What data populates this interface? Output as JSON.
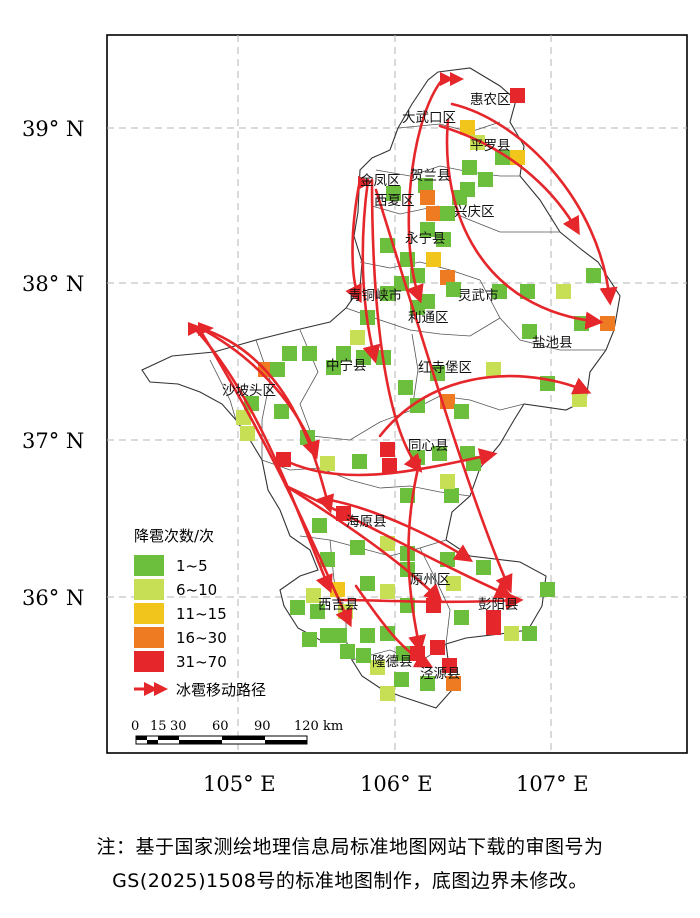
{
  "map": {
    "lat_labels": [
      {
        "text": "39° N",
        "lat": 39
      },
      {
        "text": "38° N",
        "lat": 38
      },
      {
        "text": "37° N",
        "lat": 37
      },
      {
        "text": "36° N",
        "lat": 36
      }
    ],
    "lon_labels": [
      {
        "text": "105° E",
        "lon": 105
      },
      {
        "text": "106° E",
        "lon": 106
      },
      {
        "text": "107° E",
        "lon": 107
      }
    ],
    "counties": [
      "惠农区",
      "大武口区",
      "平罗县",
      "金凤区",
      "贺兰县",
      "西夏区",
      "兴庆区",
      "永宁县",
      "青铜峡市",
      "灵武市",
      "利通区",
      "盐池县",
      "中宁县",
      "红寺堡区",
      "沙坡头区",
      "同心县",
      "海原县",
      "原州区",
      "西吉县",
      "彭阳县",
      "隆德县",
      "泾源县"
    ],
    "legend": {
      "title": "降雹次数/次",
      "classes": [
        {
          "label": "1~5",
          "color": "#6cbf3c"
        },
        {
          "label": "6~10",
          "color": "#c6df55"
        },
        {
          "label": "11~15",
          "color": "#f2c51d"
        },
        {
          "label": "16~30",
          "color": "#ee7a22"
        },
        {
          "label": "31~70",
          "color": "#e5262a"
        }
      ],
      "path_label": "冰雹移动路径",
      "path_color": "#e5262a"
    },
    "scalebar": {
      "ticks": [
        "0",
        "15",
        "30",
        "60",
        "90",
        "120 km"
      ]
    }
  },
  "note": {
    "line1": "注：基于国家测绘地理信息局标准地图网站下载的审图号为",
    "line2": "GS(2025)1508号的标准地图制作，底图边界未修改。"
  }
}
